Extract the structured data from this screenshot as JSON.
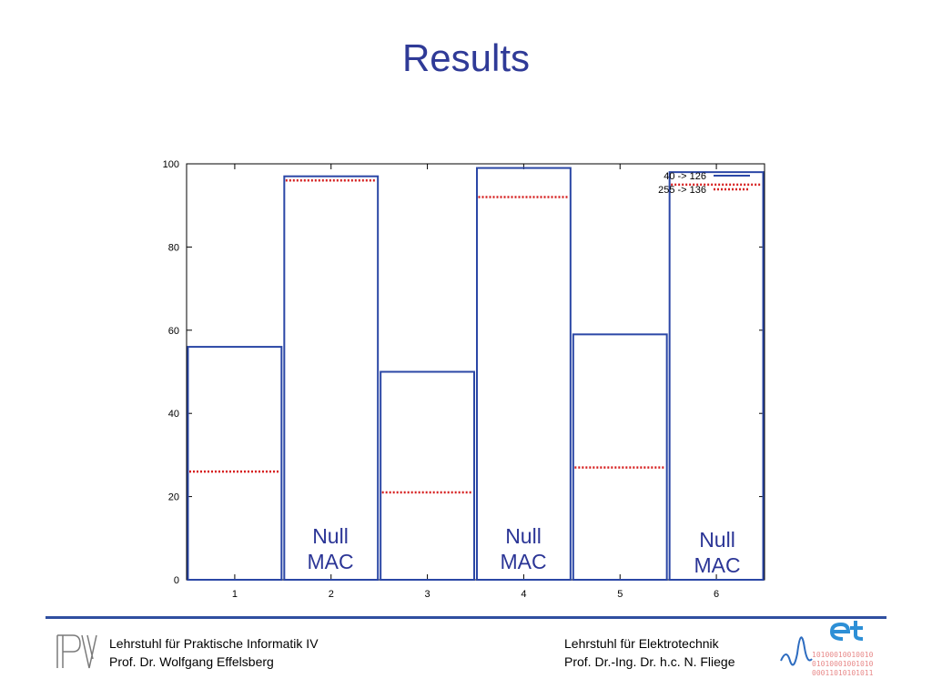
{
  "slide": {
    "title": "Results",
    "annotations": [
      "Null\nMAC",
      "Null\nMAC",
      "Null\nMAC"
    ]
  },
  "footer": {
    "left_line1": "Lehrstuhl für Praktische Informatik IV",
    "left_line2": "Prof. Dr. Wolfgang Effelsberg",
    "right_line1": "Lehrstuhl für Elektrotechnik",
    "right_line2": "Prof. Dr.-Ing. Dr. h.c. N. Fliege",
    "left_logo": "pi-logo",
    "right_logo": "et-logo",
    "rule_color": "#2f4fa0"
  },
  "chart_data": {
    "type": "bar",
    "title": "",
    "xlabel": "",
    "ylabel": "",
    "categories": [
      "1",
      "2",
      "3",
      "4",
      "5",
      "6"
    ],
    "ylim": [
      0,
      100
    ],
    "yticks": [
      0,
      20,
      40,
      60,
      80,
      100
    ],
    "legend_position": "top-right",
    "grid": false,
    "series": [
      {
        "name": "40 -> 126",
        "values": [
          56,
          97,
          50,
          99,
          59,
          98
        ],
        "color": "#2b47a6",
        "style": "solid"
      },
      {
        "name": "255 -> 136",
        "values": [
          26,
          96,
          21,
          92,
          27,
          95
        ],
        "color": "#d62020",
        "style": "dotted"
      }
    ]
  }
}
